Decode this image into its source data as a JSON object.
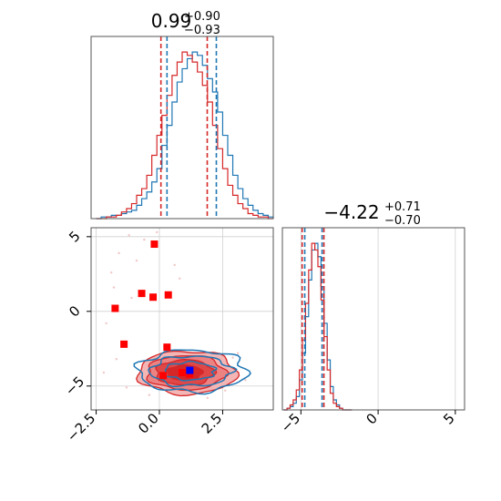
{
  "chart_data": [
    {
      "type": "histogram",
      "panel": "top-left",
      "title_value": "0.99",
      "title_upper": "+0.90",
      "title_lower": "−0.93",
      "xlim": [
        -2.7,
        4.5
      ],
      "bin_centers": [
        -2.4,
        -2.2,
        -2.0,
        -1.8,
        -1.6,
        -1.4,
        -1.2,
        -1.0,
        -0.8,
        -0.6,
        -0.4,
        -0.2,
        0.0,
        0.2,
        0.4,
        0.6,
        0.8,
        1.0,
        1.2,
        1.4,
        1.6,
        1.8,
        2.0,
        2.2,
        2.4,
        2.6,
        2.8,
        3.0,
        3.2,
        3.4,
        3.6,
        3.8,
        4.0,
        4.2,
        4.4
      ],
      "series": [
        {
          "color": "#1f77b4",
          "values": [
            0,
            1,
            1,
            2,
            2,
            3,
            4,
            5,
            8,
            12,
            16,
            22,
            30,
            44,
            56,
            70,
            82,
            90,
            96,
            100,
            98,
            92,
            84,
            76,
            64,
            50,
            38,
            26,
            18,
            12,
            8,
            5,
            3,
            2,
            1
          ]
        },
        {
          "color": "#d62728",
          "values": [
            0,
            0,
            1,
            1,
            2,
            4,
            6,
            9,
            14,
            18,
            26,
            38,
            50,
            62,
            74,
            86,
            94,
            100,
            98,
            94,
            88,
            80,
            70,
            56,
            42,
            30,
            20,
            14,
            9,
            6,
            3,
            2,
            1,
            1,
            0
          ]
        }
      ],
      "vlines": [
        {
          "color": "#d62728",
          "x": 0.06
        },
        {
          "color": "#d62728",
          "x": 1.89
        },
        {
          "color": "#1f77b4",
          "x": 0.3
        },
        {
          "color": "#1f77b4",
          "x": 2.25
        }
      ]
    },
    {
      "type": "histogram",
      "panel": "bottom-right",
      "title_value": "−4.22",
      "title_upper": "+0.71",
      "title_lower": "−0.70",
      "xlim": [
        -6.2,
        5.6
      ],
      "xticks": [
        "−5",
        "0",
        "5"
      ],
      "xtick_values": [
        -5,
        0,
        5
      ],
      "bin_centers": [
        -6.0,
        -5.8,
        -5.6,
        -5.4,
        -5.2,
        -5.0,
        -4.8,
        -4.6,
        -4.4,
        -4.2,
        -4.0,
        -3.8,
        -3.6,
        -3.4,
        -3.2,
        -3.0,
        -2.8,
        -2.6,
        -2.4,
        -2.2,
        -2.0,
        -1.8
      ],
      "series": [
        {
          "color": "#1f77b4",
          "values": [
            0,
            1,
            2,
            4,
            8,
            18,
            34,
            56,
            78,
            96,
            100,
            92,
            74,
            52,
            30,
            14,
            6,
            3,
            1,
            0,
            0,
            0
          ]
        },
        {
          "color": "#d62728",
          "values": [
            0,
            1,
            3,
            6,
            12,
            24,
            42,
            64,
            84,
            100,
            96,
            86,
            66,
            44,
            24,
            10,
            4,
            2,
            1,
            0,
            0,
            0
          ]
        }
      ],
      "vlines": [
        {
          "color": "#d62728",
          "x": -4.92
        },
        {
          "color": "#d62728",
          "x": -3.51
        },
        {
          "color": "#1f77b4",
          "x": -4.75
        },
        {
          "color": "#1f77b4",
          "x": -3.63
        }
      ]
    },
    {
      "type": "scatter",
      "panel": "bottom-left",
      "xlim": [
        -2.7,
        4.5
      ],
      "ylim": [
        -6.6,
        5.6
      ],
      "xticks": [
        "−2.5",
        "0.0",
        "2.5"
      ],
      "xtick_values": [
        -2.5,
        0.0,
        2.5
      ],
      "yticks": [
        "−5",
        "0",
        "5"
      ],
      "ytick_values": [
        -5,
        0,
        5
      ],
      "red_markers": [
        {
          "x": -0.2,
          "y": 4.5
        },
        {
          "x": -0.7,
          "y": 1.2
        },
        {
          "x": -0.25,
          "y": 0.95
        },
        {
          "x": 0.35,
          "y": 1.1
        },
        {
          "x": -1.75,
          "y": 0.2
        },
        {
          "x": -1.4,
          "y": -2.2
        },
        {
          "x": 0.3,
          "y": -2.4
        },
        {
          "x": 0.15,
          "y": -4.3
        },
        {
          "x": 0.9,
          "y": -4.1
        },
        {
          "x": 1.2,
          "y": -4.2
        }
      ],
      "blue_markers": [
        {
          "x": 1.2,
          "y": -3.95
        }
      ],
      "contours_red": [
        {
          "cx": 1.1,
          "cy": -4.1,
          "rx": 1.95,
          "ry": 1.45,
          "fill": "#f4b5b5"
        },
        {
          "cx": 1.05,
          "cy": -4.1,
          "rx": 1.55,
          "ry": 1.15,
          "fill": "#ec8282"
        },
        {
          "cx": 1.0,
          "cy": -4.1,
          "rx": 1.15,
          "ry": 0.85,
          "fill": "#e04848"
        },
        {
          "cx": 1.0,
          "cy": -4.1,
          "rx": 0.7,
          "ry": 0.5,
          "fill": "#d62728"
        }
      ],
      "contours_blue": [
        {
          "cx": 1.3,
          "cy": -4.0,
          "rx": 2.15,
          "ry": 1.4
        },
        {
          "cx": 1.25,
          "cy": -4.0,
          "rx": 1.6,
          "ry": 1.0
        },
        {
          "cx": 1.2,
          "cy": -4.0,
          "rx": 1.0,
          "ry": 0.6
        }
      ],
      "noise_points": [
        {
          "x": -1.2,
          "y": 5.1
        },
        {
          "x": -0.6,
          "y": 4.8
        },
        {
          "x": -0.1,
          "y": 5.3
        },
        {
          "x": -1.6,
          "y": 3.9
        },
        {
          "x": -0.9,
          "y": 3.4
        },
        {
          "x": -1.9,
          "y": 2.6
        },
        {
          "x": 0.6,
          "y": 3.1
        },
        {
          "x": -1.1,
          "y": 0.9
        },
        {
          "x": -2.1,
          "y": -0.8
        },
        {
          "x": -1.7,
          "y": -3.2
        },
        {
          "x": -2.2,
          "y": -4.1
        },
        {
          "x": -1.3,
          "y": -5.1
        },
        {
          "x": 2.9,
          "y": -3.1
        },
        {
          "x": 3.4,
          "y": -4.6
        },
        {
          "x": 2.6,
          "y": -5.3
        },
        {
          "x": 3.1,
          "y": -2.8
        },
        {
          "x": -0.4,
          "y": -5.6
        },
        {
          "x": 1.9,
          "y": -5.8
        },
        {
          "x": 0.8,
          "y": 2.2
        },
        {
          "x": -1.8,
          "y": 1.6
        }
      ]
    }
  ]
}
